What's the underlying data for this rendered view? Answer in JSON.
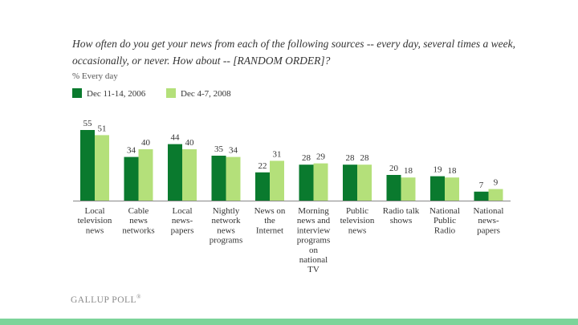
{
  "header": {
    "question": "How often do you get your news from each of the following sources -- every day, several times a week, occasionally, or never.  How about -- [RANDOM ORDER]?",
    "subtitle": "% Every day"
  },
  "colors": {
    "series_2006": "#0a7a2e",
    "series_2008": "#b4e07a",
    "axis": "#888888",
    "footer_bar": "#7dd49a"
  },
  "chart_data": {
    "type": "bar",
    "title": "",
    "ylabel": "% Every day",
    "ylim": [
      0,
      60
    ],
    "categories": [
      "Local\ntelevision\nnews",
      "Cable\nnews\nnetworks",
      "Local\nnews-\npapers",
      "Nightly\nnetwork\nnews\nprograms",
      "News on\nthe\nInternet",
      "Morning\nnews and\ninterview\nprograms\non\nnational\nTV",
      "Public\ntelevision\nnews",
      "Radio talk\nshows",
      "National\nPublic\nRadio",
      "National\nnews-\npapers"
    ],
    "series": [
      {
        "name": "Dec 11-14, 2006",
        "values": [
          55,
          34,
          44,
          35,
          22,
          28,
          28,
          20,
          19,
          7
        ]
      },
      {
        "name": "Dec 4-7, 2008",
        "values": [
          51,
          40,
          40,
          34,
          31,
          29,
          28,
          18,
          18,
          9
        ]
      }
    ],
    "legend_position": "top-left"
  },
  "footer": {
    "brand": "GALLUP POLL",
    "brand_mark": "®"
  }
}
